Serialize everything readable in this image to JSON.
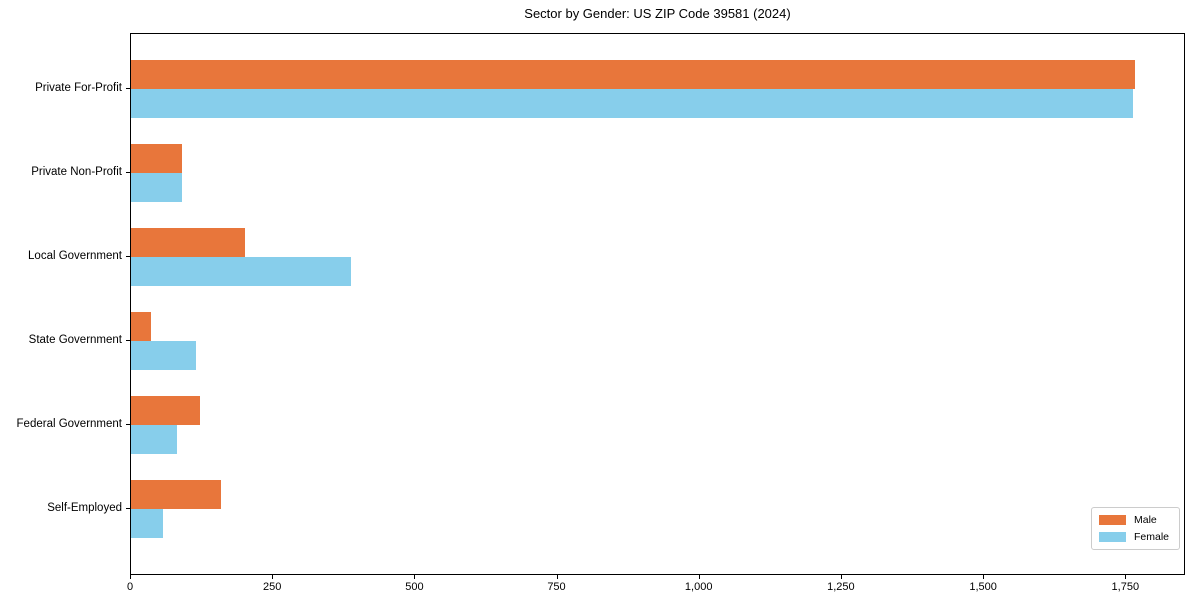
{
  "chart_data": {
    "type": "bar",
    "orientation": "horizontal",
    "title": "Sector by Gender: US ZIP Code 39581 (2024)",
    "xlabel": "",
    "ylabel": "",
    "categories": [
      "Private For-Profit",
      "Private Non-Profit",
      "Local Government",
      "State Government",
      "Federal Government",
      "Self-Employed"
    ],
    "series": [
      {
        "name": "Male",
        "color": "#e8763b",
        "values": [
          1765,
          89,
          200,
          35,
          121,
          158
        ]
      },
      {
        "name": "Female",
        "color": "#87ceeb",
        "values": [
          1761,
          90,
          387,
          114,
          81,
          56
        ]
      }
    ],
    "xlim": [
      0,
      1855
    ],
    "xticks": [
      0,
      250,
      500,
      750,
      1000,
      1250,
      1500,
      1750
    ],
    "xtick_labels": [
      "0",
      "250",
      "500",
      "750",
      "1,000",
      "1,250",
      "1,500",
      "1,750"
    ],
    "grid": false,
    "legend": {
      "position": "lower right",
      "entries": [
        "Male",
        "Female"
      ]
    }
  }
}
